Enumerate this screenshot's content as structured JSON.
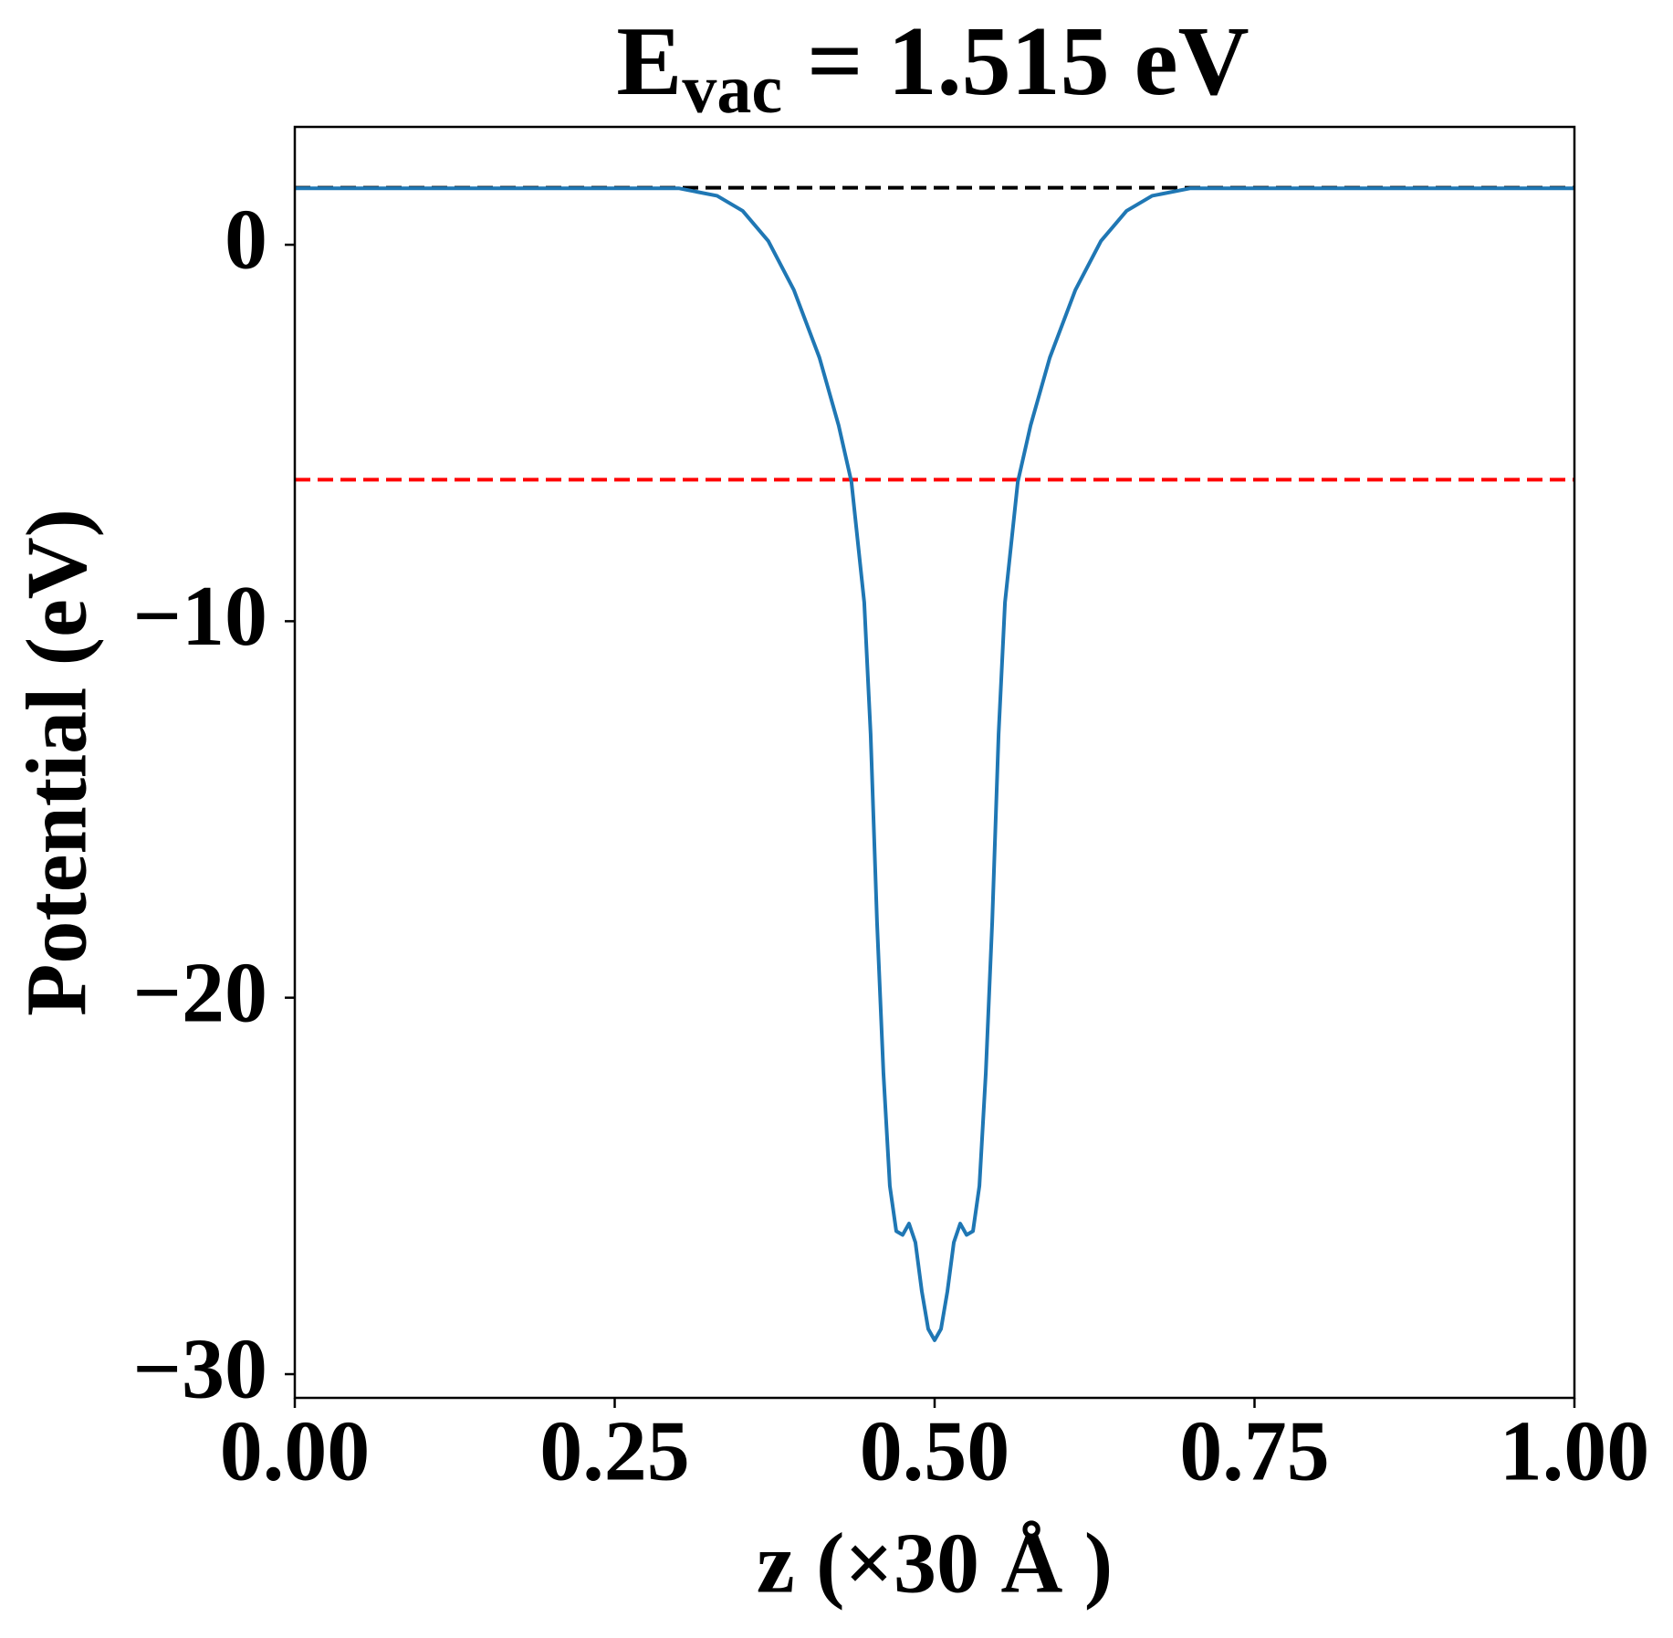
{
  "chart_data": {
    "type": "line",
    "title": {
      "main": "E",
      "subscript": "vac",
      "suffix": " = 1.515 eV"
    },
    "x_label": "z (×30 Å )",
    "y_label": "Potential (eV)",
    "xlim": [
      0,
      1
    ],
    "ylim": [
      -30.63,
      3.13
    ],
    "xticks": [
      {
        "value": 0,
        "label": "0.00"
      },
      {
        "value": 0.25,
        "label": "0.25"
      },
      {
        "value": 0.5,
        "label": "0.50"
      },
      {
        "value": 0.75,
        "label": "0.75"
      },
      {
        "value": 1,
        "label": "1.00"
      }
    ],
    "yticks": [
      {
        "value": 0,
        "label": "0"
      },
      {
        "value": -10,
        "label": "−10"
      },
      {
        "value": -20,
        "label": "−20"
      },
      {
        "value": -30,
        "label": "−30"
      }
    ],
    "grid": false,
    "hlines": [
      {
        "value": 1.515,
        "color": "#000000"
      },
      {
        "value": -6.24,
        "color": "#ff0000"
      }
    ],
    "series": [
      {
        "color": "#1f77b4",
        "x": [
          0,
          0.1,
          0.2,
          0.3,
          0.33,
          0.35,
          0.37,
          0.39,
          0.41,
          0.425,
          0.435,
          0.445,
          0.45,
          0.455,
          0.46,
          0.465,
          0.47,
          0.475,
          0.48,
          0.485,
          0.49,
          0.495,
          0.5,
          0.505,
          0.51,
          0.515,
          0.52,
          0.525,
          0.53,
          0.535,
          0.54,
          0.545,
          0.55,
          0.555,
          0.565,
          0.575,
          0.59,
          0.61,
          0.63,
          0.65,
          0.67,
          0.7,
          0.8,
          0.9,
          1
        ],
        "values": [
          1.5,
          1.5,
          1.5,
          1.5,
          1.3,
          0.9,
          0.1,
          -1.2,
          -3.0,
          -4.8,
          -6.3,
          -9.5,
          -13,
          -18,
          -22,
          -25,
          -26.2,
          -26.3,
          -26.0,
          -26.5,
          -27.8,
          -28.8,
          -29.1,
          -28.8,
          -27.8,
          -26.5,
          -26.0,
          -26.3,
          -26.2,
          -25,
          -22,
          -18,
          -13,
          -9.5,
          -6.3,
          -4.8,
          -3.0,
          -1.2,
          0.1,
          0.9,
          1.3,
          1.5,
          1.5,
          1.5,
          1.5
        ]
      }
    ]
  }
}
